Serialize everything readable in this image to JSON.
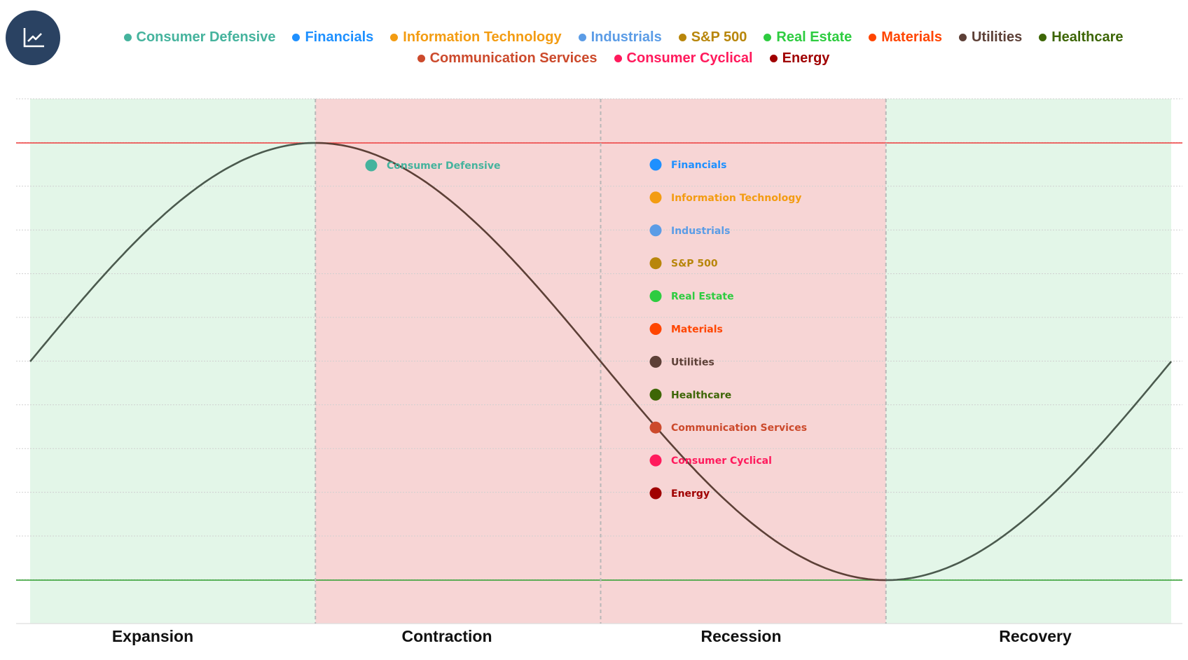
{
  "app": {
    "logo_icon": "line-chart-icon"
  },
  "legend": {
    "rows": [
      [
        {
          "label": "Consumer Defensive",
          "color": "#45b39d"
        },
        {
          "label": "Financials",
          "color": "#1e90ff"
        },
        {
          "label": "Information Technology",
          "color": "#f39c12"
        },
        {
          "label": "Industrials",
          "color": "#5b9ce6"
        },
        {
          "label": "S&P 500",
          "color": "#b8860b"
        },
        {
          "label": "Real Estate",
          "color": "#2ecc40"
        },
        {
          "label": "Materials",
          "color": "#ff4500"
        },
        {
          "label": "Utilities",
          "color": "#5d4037"
        },
        {
          "label": "Healthcare",
          "color": "#3d6606"
        }
      ],
      [
        {
          "label": "Communication Services",
          "color": "#cc4a2c"
        },
        {
          "label": "Consumer Cyclical",
          "color": "#ff1a5c"
        },
        {
          "label": "Energy",
          "color": "#a00000"
        }
      ]
    ]
  },
  "chart_data": {
    "type": "line",
    "title": "",
    "description": "Economic cycle sine curve with sector positions",
    "phases": [
      {
        "label": "Expansion",
        "shade": "green"
      },
      {
        "label": "Contraction",
        "shade": "red"
      },
      {
        "label": "Recession",
        "shade": "red"
      },
      {
        "label": "Recovery",
        "shade": "green"
      }
    ],
    "x_range": [
      0,
      4
    ],
    "ylim": [
      -1.2,
      1.2
    ],
    "curve": {
      "function": "sin",
      "period_phases": 4,
      "amplitude": 1,
      "start_value": 0
    },
    "reference_lines": [
      {
        "name": "peak",
        "value": 1,
        "color": "#f03c3c"
      },
      {
        "name": "trough",
        "value": -1,
        "color": "#2e9e2e"
      }
    ],
    "grid": true,
    "points": [
      {
        "label": "Consumer Defensive",
        "x": 1.2,
        "y": 0.9,
        "color": "#45b39d"
      },
      {
        "label": "Financials",
        "x": 2.2,
        "y": 0.9,
        "color": "#1e90ff"
      },
      {
        "label": "Information Technology",
        "x": 2.2,
        "y": 0.75,
        "color": "#f39c12"
      },
      {
        "label": "Industrials",
        "x": 2.2,
        "y": 0.6,
        "color": "#5b9ce6"
      },
      {
        "label": "S&P 500",
        "x": 2.2,
        "y": 0.45,
        "color": "#b8860b"
      },
      {
        "label": "Real Estate",
        "x": 2.2,
        "y": 0.3,
        "color": "#2ecc40"
      },
      {
        "label": "Materials",
        "x": 2.2,
        "y": 0.15,
        "color": "#ff4500"
      },
      {
        "label": "Utilities",
        "x": 2.2,
        "y": 0.0,
        "color": "#5d4037"
      },
      {
        "label": "Healthcare",
        "x": 2.2,
        "y": -0.15,
        "color": "#3d6606"
      },
      {
        "label": "Communication Services",
        "x": 2.2,
        "y": -0.3,
        "color": "#cc4a2c"
      },
      {
        "label": "Consumer Cyclical",
        "x": 2.2,
        "y": -0.45,
        "color": "#ff1a5c"
      },
      {
        "label": "Energy",
        "x": 2.2,
        "y": -0.6,
        "color": "#a00000"
      }
    ],
    "colors": {
      "green_shade": "#e3f6e8",
      "red_shade": "#f7d5d5",
      "curve_green_zone": "#4b5a4e",
      "curve_red_zone": "#5d4037",
      "grid": "#d0d0d0",
      "divider": "#b8b8b8"
    }
  }
}
